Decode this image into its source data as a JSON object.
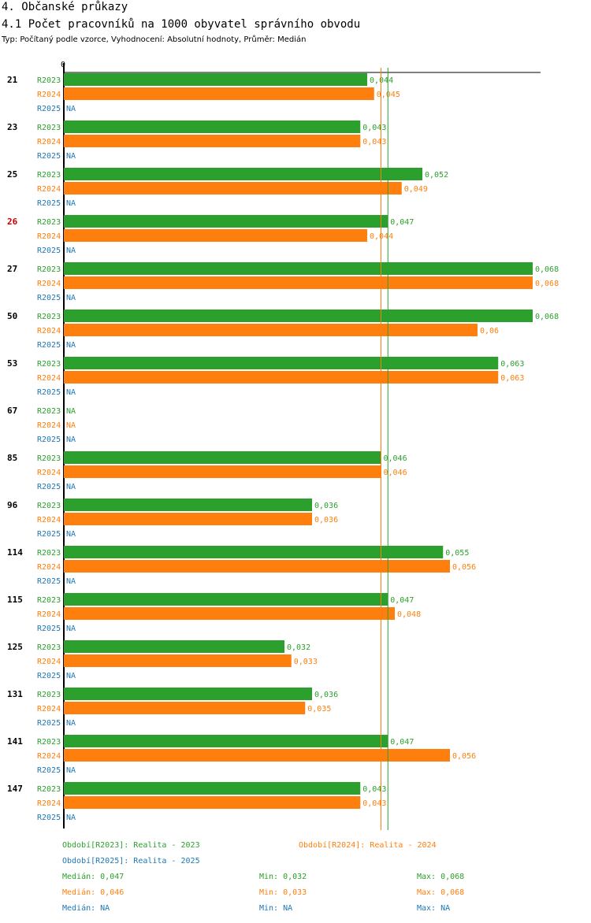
{
  "header": {
    "title": "4. Občanské průkazy",
    "subtitle": "4.1 Počet pracovníků na 1000 obyvatel správního obvodu",
    "meta": "Typ: Počítaný podle vzorce, Vyhodnocení: Absolutní hodnoty, Průměr: Medián"
  },
  "colors": {
    "R2023": "#2ca02c",
    "R2024": "#ff7f0e",
    "R2025": "#1f77b4",
    "highlight": "#cc0000"
  },
  "chart_data": {
    "type": "bar",
    "orientation": "horizontal",
    "xlim": [
      0,
      0.07
    ],
    "zero_label": "0",
    "na_label": "NA",
    "highlight_category": "26",
    "categories": [
      "21",
      "23",
      "25",
      "26",
      "27",
      "50",
      "53",
      "67",
      "85",
      "96",
      "114",
      "115",
      "125",
      "131",
      "141",
      "147"
    ],
    "series": [
      {
        "name": "R2023",
        "values": [
          0.044,
          0.043,
          0.052,
          0.047,
          0.068,
          0.068,
          0.063,
          null,
          0.046,
          0.036,
          0.055,
          0.047,
          0.032,
          0.036,
          0.047,
          0.043
        ],
        "labels": [
          "0,044",
          "0,043",
          "0,052",
          "0,047",
          "0,068",
          "0,068",
          "0,063",
          "NA",
          "0,046",
          "0,036",
          "0,055",
          "0,047",
          "0,032",
          "0,036",
          "0,047",
          "0,043"
        ]
      },
      {
        "name": "R2024",
        "values": [
          0.045,
          0.043,
          0.049,
          0.044,
          0.068,
          0.06,
          0.063,
          null,
          0.046,
          0.036,
          0.056,
          0.048,
          0.033,
          0.035,
          0.056,
          0.043
        ],
        "labels": [
          "0,045",
          "0,043",
          "0,049",
          "0,044",
          "0,068",
          "0,06",
          "0,063",
          "NA",
          "0,046",
          "0,036",
          "0,056",
          "0,048",
          "0,033",
          "0,035",
          "0,056",
          "0,043"
        ]
      },
      {
        "name": "R2025",
        "values": [
          null,
          null,
          null,
          null,
          null,
          null,
          null,
          null,
          null,
          null,
          null,
          null,
          null,
          null,
          null,
          null
        ],
        "labels": [
          "NA",
          "NA",
          "NA",
          "NA",
          "NA",
          "NA",
          "NA",
          "NA",
          "NA",
          "NA",
          "NA",
          "NA",
          "NA",
          "NA",
          "NA",
          "NA"
        ]
      }
    ],
    "reference_lines": [
      {
        "series": "R2023",
        "stat": "median",
        "value": 0.047
      },
      {
        "series": "R2024",
        "stat": "median",
        "value": 0.046
      }
    ]
  },
  "legend": {
    "r2023": "Období[R2023]: Realita - 2023",
    "r2024": "Období[R2024]: Realita - 2024",
    "r2025": "Období[R2025]: Realita - 2025"
  },
  "stats": [
    {
      "median": "Medián: 0,047",
      "min": "Min: 0,032",
      "max": "Max: 0,068"
    },
    {
      "median": "Medián: 0,046",
      "min": "Min: 0,033",
      "max": "Max: 0,068"
    },
    {
      "median": "Medián: NA",
      "min": "Min: NA",
      "max": "Max: NA"
    }
  ]
}
